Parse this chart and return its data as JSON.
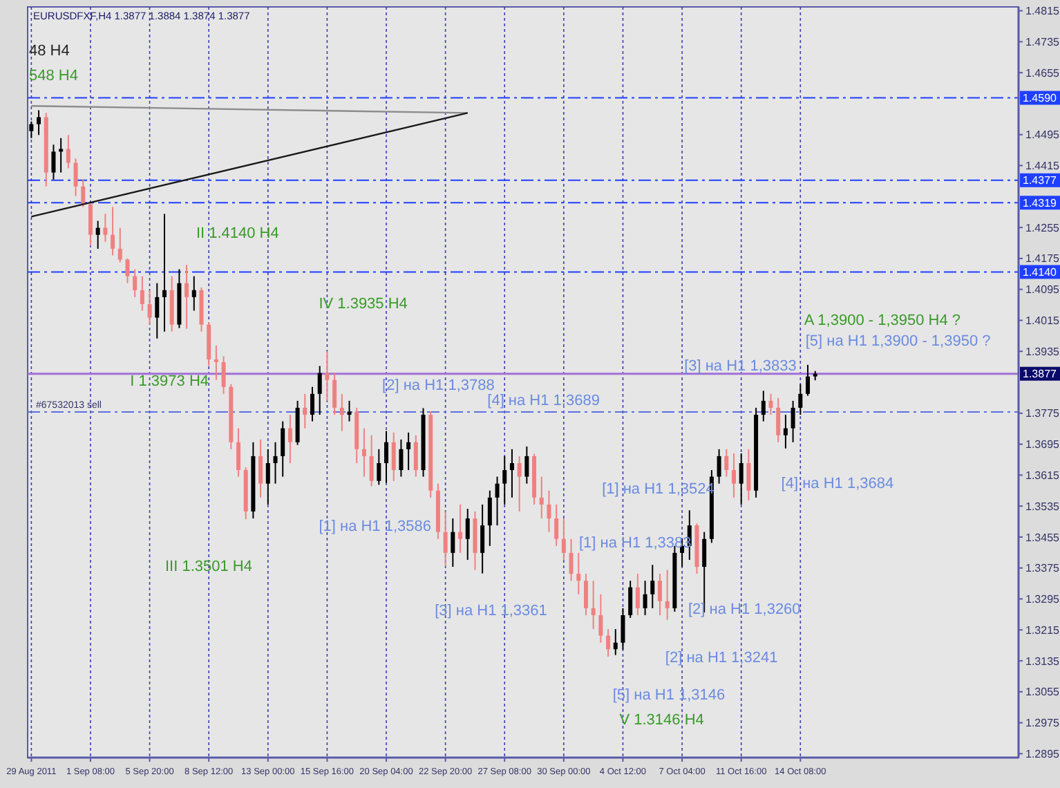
{
  "chart_data": {
    "type": "candlestick",
    "title": "EURUSDFXF,H4  1.3877 1.3884 1.3874 1.3877",
    "categories": [
      "29 Aug 2011",
      null,
      null,
      null,
      null,
      null,
      null,
      null,
      "1 Sep 08:00",
      null,
      null,
      null,
      null,
      null,
      null,
      null,
      "5 Sep 20:00",
      null,
      null,
      null,
      null,
      null,
      null,
      null,
      "8 Sep 12:00",
      null,
      null,
      null,
      null,
      null,
      null,
      null,
      "13 Sep 00:00",
      null,
      null,
      null,
      null,
      null,
      null,
      null,
      "15 Sep 16:00",
      null,
      null,
      null,
      null,
      null,
      null,
      null,
      "20 Sep 04:00",
      null,
      null,
      null,
      null,
      null,
      null,
      null,
      "22 Sep 20:00",
      null,
      null,
      null,
      null,
      null,
      null,
      null,
      "27 Sep 08:00",
      null,
      null,
      null,
      null,
      null,
      null,
      null,
      "30 Sep 00:00",
      null,
      null,
      null,
      null,
      null,
      null,
      null,
      "4 Oct 12:00",
      null,
      null,
      null,
      null,
      null,
      null,
      null,
      "7 Oct 04:00",
      null,
      null,
      null,
      null,
      null,
      null,
      null,
      "11 Oct 16:00",
      null,
      null,
      null,
      null,
      null,
      null,
      null,
      "14 Oct 08:00",
      null,
      null,
      null,
      null,
      null,
      null,
      null,
      null,
      null,
      null,
      null,
      null,
      null,
      null,
      null,
      null,
      null,
      null,
      null,
      null,
      null,
      null,
      null,
      null,
      null,
      null,
      null,
      null,
      null
    ],
    "ohlc": [
      [
        1.4504,
        1.4529,
        1.4486,
        1.4522
      ],
      [
        1.4522,
        1.4558,
        1.4494,
        1.454
      ],
      [
        1.454,
        1.4551,
        1.4361,
        1.4397
      ],
      [
        1.4397,
        1.4469,
        1.4379,
        1.4451
      ],
      [
        1.4451,
        1.4486,
        1.4397,
        1.4458
      ],
      [
        1.4458,
        1.4494,
        1.4408,
        1.4422
      ],
      [
        1.4422,
        1.4433,
        1.4336,
        1.4361
      ],
      [
        1.4361,
        1.4379,
        1.4308,
        1.4315
      ],
      [
        1.4315,
        1.432,
        1.4208,
        1.4236
      ],
      [
        1.4236,
        1.4272,
        1.42,
        1.4254
      ],
      [
        1.4254,
        1.429,
        1.4218,
        1.4236
      ],
      [
        1.4236,
        1.4308,
        1.4183,
        1.42
      ],
      [
        1.42,
        1.4254,
        1.4165,
        1.4172
      ],
      [
        1.4172,
        1.4175,
        1.4111,
        1.4129
      ],
      [
        1.4129,
        1.4147,
        1.4075,
        1.4093
      ],
      [
        1.4093,
        1.4129,
        1.404,
        1.4057
      ],
      [
        1.4057,
        1.4093,
        1.4004,
        1.4022
      ],
      [
        1.4022,
        1.4111,
        1.3968,
        1.4075
      ],
      [
        1.4075,
        1.429,
        1.3986,
        1.4093
      ],
      [
        1.4093,
        1.4129,
        1.3986,
        1.4004
      ],
      [
        1.4004,
        1.4147,
        1.3995,
        1.4111
      ],
      [
        1.4111,
        1.4158,
        1.3993,
        1.4075
      ],
      [
        1.4075,
        1.4129,
        1.404,
        1.4093
      ],
      [
        1.4093,
        1.41,
        1.3986,
        1.4004
      ],
      [
        1.4004,
        1.401,
        1.3897,
        1.3914
      ],
      [
        1.3914,
        1.395,
        1.3861,
        1.3907
      ],
      [
        1.3907,
        1.3922,
        1.3825,
        1.3843
      ],
      [
        1.3843,
        1.385,
        1.3682,
        1.37
      ],
      [
        1.37,
        1.3736,
        1.3611,
        1.3628
      ],
      [
        1.3628,
        1.3635,
        1.3501,
        1.3521
      ],
      [
        1.3521,
        1.37,
        1.3503,
        1.3664
      ],
      [
        1.3664,
        1.3707,
        1.3557,
        1.3593
      ],
      [
        1.3593,
        1.3682,
        1.3539,
        1.3646
      ],
      [
        1.3646,
        1.37,
        1.3593,
        1.3664
      ],
      [
        1.3664,
        1.3754,
        1.3611,
        1.3736
      ],
      [
        1.3736,
        1.3771,
        1.3646,
        1.37
      ],
      [
        1.37,
        1.3807,
        1.3693,
        1.3789
      ],
      [
        1.3789,
        1.3825,
        1.3736,
        1.3771
      ],
      [
        1.3771,
        1.3843,
        1.3754,
        1.3825
      ],
      [
        1.3825,
        1.3897,
        1.3771,
        1.3879
      ],
      [
        1.3879,
        1.3935,
        1.3807,
        1.3861
      ],
      [
        1.3861,
        1.3879,
        1.3771,
        1.3789
      ],
      [
        1.3789,
        1.3825,
        1.3729,
        1.3771
      ],
      [
        1.3771,
        1.3807,
        1.3754,
        1.3779
      ],
      [
        1.3779,
        1.3789,
        1.3646,
        1.3682
      ],
      [
        1.3682,
        1.3736,
        1.3611,
        1.3664
      ],
      [
        1.3664,
        1.3718,
        1.3586,
        1.36
      ],
      [
        1.36,
        1.3682,
        1.359,
        1.3646
      ],
      [
        1.3646,
        1.3729,
        1.3595,
        1.37
      ],
      [
        1.37,
        1.3725,
        1.36,
        1.3628
      ],
      [
        1.3628,
        1.3707,
        1.3611,
        1.3682
      ],
      [
        1.3682,
        1.3725,
        1.3628,
        1.37
      ],
      [
        1.37,
        1.3718,
        1.3611,
        1.3628
      ],
      [
        1.3628,
        1.3788,
        1.3611,
        1.3771
      ],
      [
        1.3771,
        1.378,
        1.3557,
        1.3575
      ],
      [
        1.3575,
        1.3593,
        1.345,
        1.3468
      ],
      [
        1.3468,
        1.3521,
        1.338,
        1.3414
      ],
      [
        1.3414,
        1.3503,
        1.3378,
        1.3468
      ],
      [
        1.3468,
        1.3539,
        1.3414,
        1.345
      ],
      [
        1.345,
        1.3528,
        1.3396,
        1.3503
      ],
      [
        1.3503,
        1.3521,
        1.337,
        1.3414
      ],
      [
        1.3414,
        1.3539,
        1.3361,
        1.3485
      ],
      [
        1.3485,
        1.3575,
        1.3432,
        1.3557
      ],
      [
        1.3557,
        1.3611,
        1.3485,
        1.3593
      ],
      [
        1.3593,
        1.3664,
        1.3539,
        1.3628
      ],
      [
        1.3628,
        1.3682,
        1.3557,
        1.3646
      ],
      [
        1.3646,
        1.3664,
        1.3521,
        1.3611
      ],
      [
        1.3611,
        1.3689,
        1.3593,
        1.3664
      ],
      [
        1.3664,
        1.367,
        1.3539,
        1.3557
      ],
      [
        1.3557,
        1.3611,
        1.3503,
        1.3539
      ],
      [
        1.3539,
        1.3575,
        1.3468,
        1.3503
      ],
      [
        1.3503,
        1.3539,
        1.3432,
        1.345
      ],
      [
        1.345,
        1.3503,
        1.3396,
        1.3414
      ],
      [
        1.3414,
        1.345,
        1.3342,
        1.336
      ],
      [
        1.336,
        1.3414,
        1.3307,
        1.3342
      ],
      [
        1.3342,
        1.336,
        1.3253,
        1.3271
      ],
      [
        1.3271,
        1.3342,
        1.3217,
        1.3253
      ],
      [
        1.3253,
        1.3307,
        1.3182,
        1.32
      ],
      [
        1.32,
        1.3217,
        1.3146,
        1.3165
      ],
      [
        1.3165,
        1.3217,
        1.315,
        1.3182
      ],
      [
        1.3182,
        1.3271,
        1.3164,
        1.3253
      ],
      [
        1.3253,
        1.3342,
        1.3246,
        1.3325
      ],
      [
        1.3325,
        1.336,
        1.3253,
        1.3271
      ],
      [
        1.3271,
        1.3342,
        1.3253,
        1.3307
      ],
      [
        1.3307,
        1.3383,
        1.3271,
        1.3342
      ],
      [
        1.3342,
        1.336,
        1.3253,
        1.3289
      ],
      [
        1.3289,
        1.337,
        1.3241,
        1.3271
      ],
      [
        1.3271,
        1.3432,
        1.3262,
        1.3414
      ],
      [
        1.3414,
        1.345,
        1.3378,
        1.3432
      ],
      [
        1.3432,
        1.3524,
        1.3396,
        1.3485
      ],
      [
        1.3485,
        1.349,
        1.336,
        1.3378
      ],
      [
        1.3378,
        1.3468,
        1.326,
        1.345
      ],
      [
        1.345,
        1.3628,
        1.344,
        1.3611
      ],
      [
        1.3611,
        1.3682,
        1.3593,
        1.3664
      ],
      [
        1.3664,
        1.3682,
        1.3611,
        1.3628
      ],
      [
        1.3628,
        1.3671,
        1.3557,
        1.3593
      ],
      [
        1.3593,
        1.3671,
        1.3539,
        1.3646
      ],
      [
        1.3646,
        1.3682,
        1.355,
        1.3575
      ],
      [
        1.3575,
        1.3789,
        1.3557,
        1.3771
      ],
      [
        1.3771,
        1.3833,
        1.3754,
        1.3807
      ],
      [
        1.3807,
        1.3825,
        1.3771,
        1.3789
      ],
      [
        1.3789,
        1.3814,
        1.37,
        1.3718
      ],
      [
        1.3718,
        1.3771,
        1.3684,
        1.3736
      ],
      [
        1.3736,
        1.3807,
        1.37,
        1.3789
      ],
      [
        1.3789,
        1.385,
        1.3771,
        1.3825
      ],
      [
        1.3825,
        1.39,
        1.382,
        1.387
      ],
      [
        1.387,
        1.3884,
        1.386,
        1.3877
      ],
      null,
      null,
      null,
      null,
      null,
      null,
      null,
      null,
      null,
      null,
      null,
      null,
      null,
      null,
      null,
      null,
      null,
      null,
      null,
      null,
      null,
      null,
      null,
      null,
      null,
      null,
      null
    ],
    "series": [
      {
        "type": "line",
        "color": "#8c8c8c",
        "values": [
          1.4569,
          null,
          null,
          null,
          null,
          null,
          null,
          null,
          null,
          null,
          null,
          null,
          null,
          null,
          null,
          null,
          null,
          null,
          null,
          null,
          null,
          null,
          null,
          null,
          null,
          null,
          null,
          null,
          null,
          null,
          null,
          null,
          null,
          null,
          null,
          null,
          null,
          null,
          null,
          null,
          null,
          null,
          null,
          null,
          null,
          null,
          null,
          null,
          null,
          null,
          null,
          null,
          null,
          null,
          null,
          null,
          null,
          null,
          null,
          1.4551,
          null,
          null,
          null,
          null,
          null,
          null,
          null,
          null,
          null,
          null,
          null,
          null,
          null,
          null,
          null,
          null,
          null,
          null,
          null,
          null,
          null,
          null,
          null,
          null,
          null,
          null,
          null,
          null,
          null,
          null,
          null,
          null,
          null,
          null,
          null,
          null,
          null,
          null,
          null,
          null,
          null,
          null,
          null,
          null,
          null,
          null,
          null,
          null,
          null,
          null,
          null,
          null,
          null,
          null,
          null,
          null,
          null,
          null,
          null,
          null,
          null,
          null,
          null,
          null,
          null,
          null,
          null,
          null,
          null,
          null,
          null,
          null,
          null,
          null
        ]
      },
      {
        "type": "line",
        "color": "#1a1a1a",
        "values": [
          1.4283,
          null,
          null,
          null,
          null,
          null,
          null,
          null,
          null,
          null,
          null,
          null,
          null,
          null,
          null,
          null,
          null,
          null,
          null,
          null,
          null,
          null,
          null,
          null,
          null,
          null,
          null,
          null,
          null,
          null,
          null,
          null,
          null,
          null,
          null,
          null,
          null,
          null,
          null,
          null,
          null,
          null,
          null,
          null,
          null,
          null,
          null,
          null,
          null,
          null,
          null,
          null,
          null,
          null,
          null,
          null,
          null,
          null,
          null,
          1.4551,
          null,
          null,
          null,
          null,
          null,
          null,
          null,
          null,
          null,
          null,
          null,
          null,
          null,
          null,
          null,
          null,
          null,
          null,
          null,
          null,
          null,
          null,
          null,
          null,
          null,
          null,
          null,
          null,
          null,
          null,
          null,
          null,
          null,
          null,
          null,
          null,
          null,
          null,
          null,
          null,
          null,
          null,
          null,
          null,
          null,
          null,
          null,
          null,
          null,
          null,
          null,
          null,
          null,
          null,
          null,
          null,
          null,
          null,
          null,
          null,
          null,
          null,
          null,
          null,
          null,
          null,
          null,
          null,
          null,
          null,
          null,
          null,
          null,
          null
        ]
      }
    ],
    "ylim": [
      1.2885,
      1.4825
    ],
    "yticks": [
      1.2895,
      1.2975,
      1.3055,
      1.3135,
      1.3215,
      1.3295,
      1.3375,
      1.3455,
      1.3535,
      1.3615,
      1.3695,
      1.3775,
      1.3935,
      1.4015,
      1.4095,
      1.4175,
      1.4255,
      1.4415,
      1.4495,
      1.4655,
      1.4735,
      1.4815
    ],
    "grid": "x",
    "ref_lines": [
      {
        "axis": "y",
        "value": 1.459,
        "label": "1.4590",
        "color": "#1f3fff",
        "line_style": "dashed"
      },
      {
        "axis": "y",
        "value": 1.4377,
        "label": "1.4377",
        "color": "#1f3fff",
        "line_style": "dashed"
      },
      {
        "axis": "y",
        "value": 1.4319,
        "label": "1.4319",
        "color": "#1f3fff",
        "line_style": "dashed"
      },
      {
        "axis": "y",
        "value": 1.414,
        "label": "1.4140",
        "color": "#1f3fff",
        "line_style": "dashed"
      },
      {
        "axis": "y",
        "value": 1.3877,
        "label": "1.3877",
        "color": "#a070d8",
        "line_style": "solid"
      },
      {
        "axis": "y",
        "value": 1.3778,
        "label": "#67532013 sell",
        "color": "#5a6fe0",
        "line_style": "dashed"
      }
    ],
    "annotations": [
      "48 H4",
      "548 H4",
      "II 1.4140 H4",
      "IV 1.3935 H4",
      "I 1.3973 H4",
      "[2] на H1 1,3788",
      "[4] на H1 1,3689",
      "[1] на H1 1,3586",
      "III 1.3501 H4",
      "[3] на H1 1,3361",
      "[1] на H1 1,3524",
      "[1] на H1 1,3383",
      "[2] на H1 1,3260",
      "[2] на H1 1,3241",
      "[5] на H1 1,3146",
      "V 1.3146 H4",
      "[4] на H1 1,3684",
      "[3] на H1 1,3833",
      "A  1,3900 - 1,3950  H4 ?",
      "[5] на H1 1,3900 - 1,3950 ?"
    ]
  }
}
